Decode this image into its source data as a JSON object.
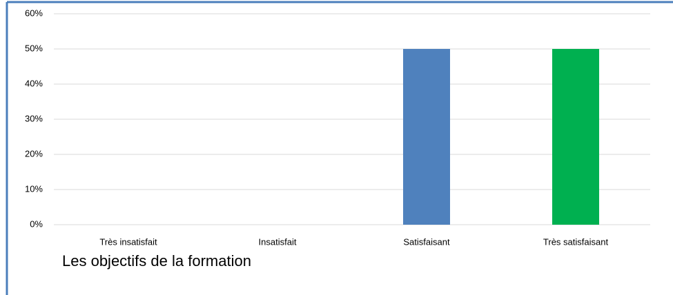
{
  "chart_data": {
    "type": "bar",
    "title": "Les objectifs de la formation",
    "categories": [
      "Très insatisfait",
      "Insatisfait",
      "Satisfaisant",
      "Très satisfaisant"
    ],
    "values": [
      0,
      0,
      50,
      50
    ],
    "colors": [
      "#4f81bd",
      "#4f81bd",
      "#4f81bd",
      "#00b050"
    ],
    "ylim": [
      0,
      60
    ],
    "yticks": [
      {
        "value": 0,
        "label": "0%"
      },
      {
        "value": 10,
        "label": "10%"
      },
      {
        "value": 20,
        "label": "20%"
      },
      {
        "value": 30,
        "label": "30%"
      },
      {
        "value": 40,
        "label": "40%"
      },
      {
        "value": 50,
        "label": "50%"
      },
      {
        "value": 60,
        "label": "60%"
      }
    ],
    "grid": true
  }
}
